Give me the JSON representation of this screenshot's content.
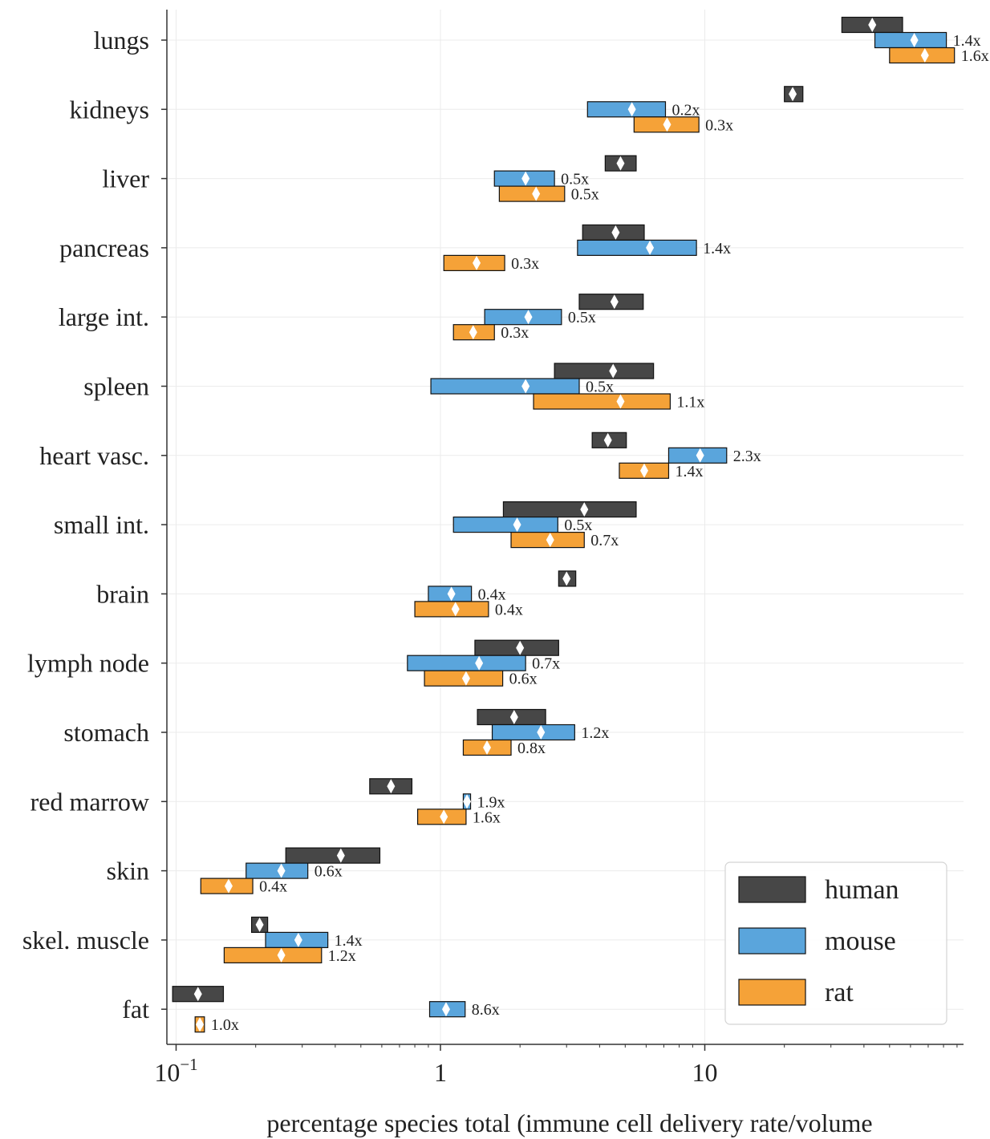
{
  "chart_data": {
    "type": "range-bar",
    "xscale": "log",
    "xlim": [
      0.095,
      90
    ],
    "xticks": [
      {
        "value": 0.1,
        "base": "10",
        "exp": "−1"
      },
      {
        "value": 1,
        "label": "1"
      },
      {
        "value": 10,
        "label": "10"
      }
    ],
    "xlabel": "percentage species total (immune cell delivery rate/volume",
    "grid": true,
    "legend": {
      "position": "lower-right",
      "entries": [
        {
          "key": "human",
          "label": "human",
          "color": "#474747"
        },
        {
          "key": "mouse",
          "label": "mouse",
          "color": "#5aa5dc"
        },
        {
          "key": "rat",
          "label": "rat",
          "color": "#f5a238"
        }
      ]
    },
    "categories": [
      {
        "name": "lungs",
        "human": {
          "low": 33,
          "high": 56,
          "mid": 43
        },
        "mouse": {
          "low": 44,
          "high": 82,
          "mid": 62,
          "ratio": "1.4x"
        },
        "rat": {
          "low": 50,
          "high": 88,
          "mid": 68,
          "ratio": "1.6x"
        }
      },
      {
        "name": "kidneys",
        "human": {
          "low": 20,
          "high": 23.5,
          "mid": 21.5
        },
        "mouse": {
          "low": 3.6,
          "high": 7.1,
          "mid": 5.3,
          "ratio": "0.2x"
        },
        "rat": {
          "low": 5.4,
          "high": 9.5,
          "mid": 7.2,
          "ratio": "0.3x"
        }
      },
      {
        "name": "liver",
        "human": {
          "low": 4.2,
          "high": 5.5,
          "mid": 4.8
        },
        "mouse": {
          "low": 1.6,
          "high": 2.7,
          "mid": 2.1,
          "ratio": "0.5x"
        },
        "rat": {
          "low": 1.67,
          "high": 2.95,
          "mid": 2.3,
          "ratio": "0.5x"
        }
      },
      {
        "name": "pancreas",
        "human": {
          "low": 3.45,
          "high": 5.9,
          "mid": 4.6
        },
        "mouse": {
          "low": 3.3,
          "high": 9.3,
          "mid": 6.2,
          "ratio": "1.4x"
        },
        "rat": {
          "low": 1.03,
          "high": 1.75,
          "mid": 1.37,
          "ratio": "0.3x"
        }
      },
      {
        "name": "large int.",
        "human": {
          "low": 3.35,
          "high": 5.85,
          "mid": 4.55
        },
        "mouse": {
          "low": 1.47,
          "high": 2.87,
          "mid": 2.15,
          "ratio": "0.5x"
        },
        "rat": {
          "low": 1.12,
          "high": 1.6,
          "mid": 1.33,
          "ratio": "0.3x"
        }
      },
      {
        "name": "spleen",
        "human": {
          "low": 2.7,
          "high": 6.4,
          "mid": 4.5
        },
        "mouse": {
          "low": 0.92,
          "high": 3.35,
          "mid": 2.1,
          "ratio": "0.5x"
        },
        "rat": {
          "low": 2.25,
          "high": 7.4,
          "mid": 4.8,
          "ratio": "1.1x"
        }
      },
      {
        "name": "heart vasc.",
        "human": {
          "low": 3.75,
          "high": 5.05,
          "mid": 4.3
        },
        "mouse": {
          "low": 7.3,
          "high": 12.1,
          "mid": 9.6,
          "ratio": "2.3x"
        },
        "rat": {
          "low": 4.75,
          "high": 7.3,
          "mid": 5.9,
          "ratio": "1.4x"
        }
      },
      {
        "name": "small int.",
        "human": {
          "low": 1.73,
          "high": 5.5,
          "mid": 3.5
        },
        "mouse": {
          "low": 1.12,
          "high": 2.78,
          "mid": 1.95,
          "ratio": "0.5x"
        },
        "rat": {
          "low": 1.85,
          "high": 3.5,
          "mid": 2.6,
          "ratio": "0.7x"
        }
      },
      {
        "name": "brain",
        "human": {
          "low": 2.8,
          "high": 3.25,
          "mid": 3.0
        },
        "mouse": {
          "low": 0.9,
          "high": 1.31,
          "mid": 1.1,
          "ratio": "0.4x"
        },
        "rat": {
          "low": 0.8,
          "high": 1.52,
          "mid": 1.14,
          "ratio": "0.4x"
        }
      },
      {
        "name": "lymph node",
        "human": {
          "low": 1.35,
          "high": 2.8,
          "mid": 2.0
        },
        "mouse": {
          "low": 0.75,
          "high": 2.1,
          "mid": 1.4,
          "ratio": "0.7x"
        },
        "rat": {
          "low": 0.87,
          "high": 1.72,
          "mid": 1.25,
          "ratio": "0.6x"
        }
      },
      {
        "name": "stomach",
        "human": {
          "low": 1.38,
          "high": 2.5,
          "mid": 1.9
        },
        "mouse": {
          "low": 1.57,
          "high": 3.22,
          "mid": 2.4,
          "ratio": "1.2x"
        },
        "rat": {
          "low": 1.22,
          "high": 1.85,
          "mid": 1.5,
          "ratio": "0.8x"
        }
      },
      {
        "name": "red marrow",
        "human": {
          "low": 0.54,
          "high": 0.78,
          "mid": 0.65
        },
        "mouse": {
          "low": 1.22,
          "high": 1.3,
          "mid": 1.26,
          "ratio": "1.9x"
        },
        "rat": {
          "low": 0.82,
          "high": 1.25,
          "mid": 1.03,
          "ratio": "1.6x"
        }
      },
      {
        "name": "skin",
        "human": {
          "low": 0.26,
          "high": 0.59,
          "mid": 0.42
        },
        "mouse": {
          "low": 0.184,
          "high": 0.315,
          "mid": 0.25,
          "ratio": "0.6x"
        },
        "rat": {
          "low": 0.124,
          "high": 0.195,
          "mid": 0.158,
          "ratio": "0.4x"
        }
      },
      {
        "name": "skel. muscle",
        "human": {
          "low": 0.193,
          "high": 0.222,
          "mid": 0.207
        },
        "mouse": {
          "low": 0.218,
          "high": 0.375,
          "mid": 0.29,
          "ratio": "1.4x"
        },
        "rat": {
          "low": 0.152,
          "high": 0.355,
          "mid": 0.25,
          "ratio": "1.2x"
        }
      },
      {
        "name": "fat",
        "human": {
          "low": 0.097,
          "high": 0.151,
          "mid": 0.121
        },
        "mouse": {
          "low": 0.91,
          "high": 1.24,
          "mid": 1.05,
          "ratio": "8.6x"
        },
        "rat": {
          "low": 0.118,
          "high": 0.128,
          "mid": 0.123,
          "ratio": "1.0x"
        }
      }
    ]
  }
}
